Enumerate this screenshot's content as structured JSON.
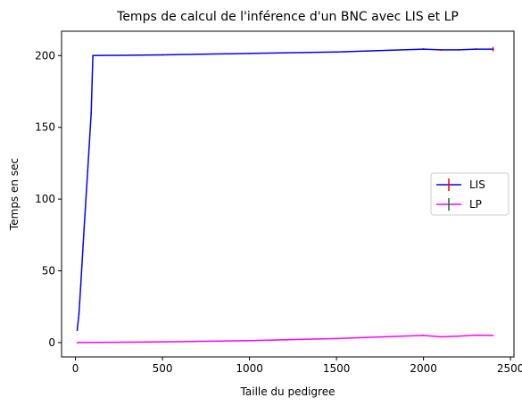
{
  "chart_data": {
    "type": "line",
    "title": "Temps de calcul de l'inférence d'un BNC avec LIS et LP",
    "xlabel": "Taille du pedigree",
    "ylabel": "Temps en sec",
    "xlim": [
      -80,
      2520
    ],
    "ylim": [
      -10,
      217
    ],
    "xticks": [
      0,
      500,
      1000,
      1500,
      2000,
      2500
    ],
    "xtick_labels": [
      "0",
      "500",
      "1000",
      "1500",
      "2000",
      "2500"
    ],
    "yticks": [
      0,
      50,
      100,
      150,
      200
    ],
    "ytick_labels": [
      "0",
      "50",
      "100",
      "150",
      "200"
    ],
    "grid": false,
    "legend": {
      "position": "center-right",
      "entries": [
        "LIS",
        "LP"
      ]
    },
    "series": [
      {
        "name": "LIS",
        "color": "#0000ff",
        "errorbar_color": "#ff0000",
        "x": [
          10,
          20,
          30,
          50,
          70,
          90,
          100,
          500,
          1000,
          1500,
          2000,
          2100,
          2200,
          2300,
          2400
        ],
        "y": [
          8.5,
          20,
          40,
          80,
          120,
          160,
          200,
          200.5,
          201.5,
          202.5,
          204.5,
          204,
          204,
          204.5,
          204.5
        ],
        "err": [
          0,
          0,
          0,
          0,
          0,
          0,
          0,
          0,
          0,
          0,
          0.6,
          0.5,
          0.4,
          0.6,
          1.5
        ]
      },
      {
        "name": "LP",
        "color": "#ff00ff",
        "errorbar_color": "#008000",
        "x": [
          10,
          100,
          500,
          1000,
          1500,
          2000,
          2100,
          2200,
          2300,
          2400
        ],
        "y": [
          0,
          0.1,
          0.5,
          1.3,
          2.8,
          5,
          4,
          4.5,
          5.2,
          5
        ],
        "err": [
          0,
          0,
          0,
          0,
          0,
          0.3,
          0.2,
          0.2,
          0.3,
          0.3
        ]
      }
    ]
  }
}
